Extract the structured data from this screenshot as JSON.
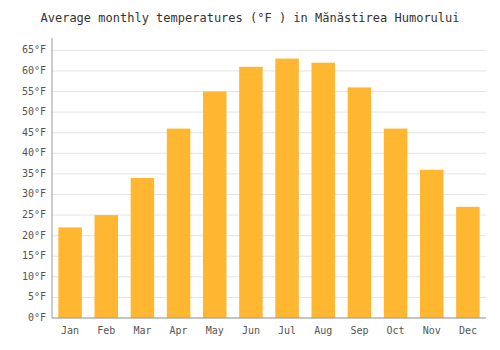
{
  "chart_data": {
    "type": "bar",
    "title": "Average monthly temperatures (°F ) in Mănăstirea Humorului",
    "categories": [
      "Jan",
      "Feb",
      "Mar",
      "Apr",
      "May",
      "Jun",
      "Jul",
      "Aug",
      "Sep",
      "Oct",
      "Nov",
      "Dec"
    ],
    "values": [
      22,
      25,
      34,
      46,
      55,
      61,
      63,
      62,
      56,
      46,
      36,
      27
    ],
    "color": "#FFB732",
    "ylim": [
      0,
      68
    ],
    "yticks": [
      {
        "value": 0,
        "label": "0°F"
      },
      {
        "value": 5,
        "label": "5°F"
      },
      {
        "value": 10,
        "label": "10°F"
      },
      {
        "value": 15,
        "label": "15°F"
      },
      {
        "value": 20,
        "label": "20°F"
      },
      {
        "value": 25,
        "label": "25°F"
      },
      {
        "value": 30,
        "label": "30°F"
      },
      {
        "value": 35,
        "label": "35°F"
      },
      {
        "value": 40,
        "label": "40°F"
      },
      {
        "value": 45,
        "label": "45°F"
      },
      {
        "value": 50,
        "label": "50°F"
      },
      {
        "value": 55,
        "label": "55°F"
      },
      {
        "value": 60,
        "label": "60°F"
      },
      {
        "value": 65,
        "label": "65°F"
      }
    ],
    "grid": true
  }
}
